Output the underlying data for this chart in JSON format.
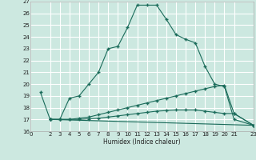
{
  "xlabel": "Humidex (Indice chaleur)",
  "background_color": "#cce8e0",
  "grid_color": "#ffffff",
  "line_color": "#1a6b5a",
  "xlim": [
    0,
    23
  ],
  "ylim": [
    16,
    27
  ],
  "xticks": [
    0,
    2,
    3,
    4,
    5,
    6,
    7,
    8,
    9,
    10,
    11,
    12,
    13,
    14,
    15,
    16,
    17,
    18,
    19,
    20,
    21,
    23
  ],
  "yticks": [
    16,
    17,
    18,
    19,
    20,
    21,
    22,
    23,
    24,
    25,
    26,
    27
  ],
  "curve1_x": [
    1,
    2,
    3,
    4,
    5,
    6,
    7,
    8,
    9,
    10,
    11,
    12,
    13,
    14,
    15,
    16,
    17,
    18,
    19,
    20,
    21,
    23
  ],
  "curve1_y": [
    19.3,
    17.0,
    17.0,
    18.8,
    19.0,
    20.0,
    21.0,
    23.0,
    23.2,
    24.8,
    26.7,
    26.7,
    26.7,
    25.5,
    24.2,
    23.8,
    23.5,
    21.5,
    20.0,
    19.8,
    17.0,
    16.5
  ],
  "curve2_x": [
    2,
    3,
    4,
    5,
    6,
    7,
    8,
    9,
    10,
    11,
    12,
    13,
    14,
    15,
    16,
    17,
    18,
    19,
    20,
    21,
    23
  ],
  "curve2_y": [
    17.0,
    17.0,
    17.0,
    17.1,
    17.2,
    17.4,
    17.6,
    17.8,
    18.0,
    18.2,
    18.4,
    18.6,
    18.8,
    19.0,
    19.2,
    19.4,
    19.6,
    19.8,
    19.9,
    17.5,
    16.5
  ],
  "curve3_x": [
    2,
    3,
    4,
    5,
    6,
    7,
    8,
    9,
    10,
    11,
    12,
    13,
    14,
    15,
    16,
    17,
    18,
    19,
    20,
    21,
    23
  ],
  "curve3_y": [
    17.0,
    17.0,
    17.0,
    17.0,
    17.05,
    17.1,
    17.2,
    17.3,
    17.4,
    17.5,
    17.6,
    17.7,
    17.75,
    17.8,
    17.8,
    17.8,
    17.7,
    17.6,
    17.5,
    17.5,
    16.5
  ],
  "curve4_x": [
    2,
    23
  ],
  "curve4_y": [
    17.0,
    16.5
  ]
}
